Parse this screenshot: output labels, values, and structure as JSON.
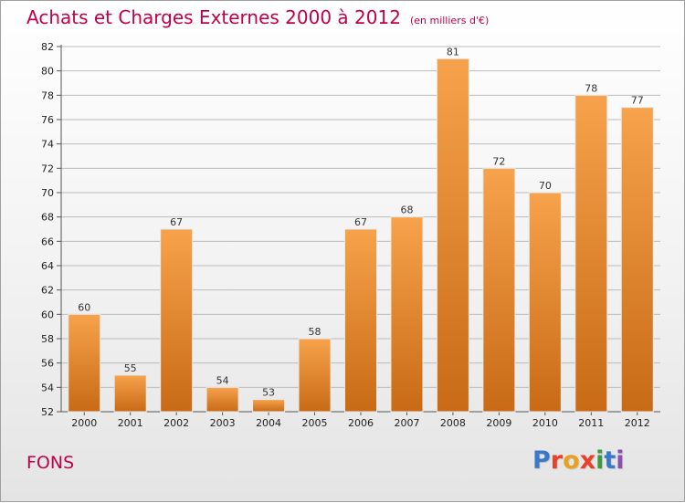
{
  "title": "Achats et Charges Externes 2000 à 2012",
  "subtitle": "(en milliers d'€)",
  "place": "FONS",
  "logo": {
    "letters": [
      "P",
      "r",
      "o",
      "x",
      "i",
      "t",
      "i"
    ],
    "colors": [
      "#3a78c8",
      "#e8402a",
      "#e8a020",
      "#e8402a",
      "#3a9a40",
      "#3a78c8",
      "#8a50b0"
    ]
  },
  "colors": {
    "title": "#c0004a",
    "bar_light": "#f7a24c",
    "bar_dark": "#c86a16",
    "grid": "#bbbbbb"
  },
  "chart_data": {
    "type": "bar",
    "title": "Achats et Charges Externes 2000 à 2012",
    "subtitle": "(en milliers d'€)",
    "categories": [
      "2000",
      "2001",
      "2002",
      "2003",
      "2004",
      "2005",
      "2006",
      "2007",
      "2008",
      "2009",
      "2010",
      "2011",
      "2012"
    ],
    "values": [
      60,
      55,
      67,
      54,
      53,
      58,
      67,
      68,
      81,
      72,
      70,
      78,
      77
    ],
    "ylim": [
      52,
      82
    ],
    "yticks": [
      52,
      54,
      56,
      58,
      60,
      62,
      64,
      66,
      68,
      70,
      72,
      74,
      76,
      78,
      80,
      82
    ],
    "grid": true,
    "xlabel": "",
    "ylabel": ""
  }
}
